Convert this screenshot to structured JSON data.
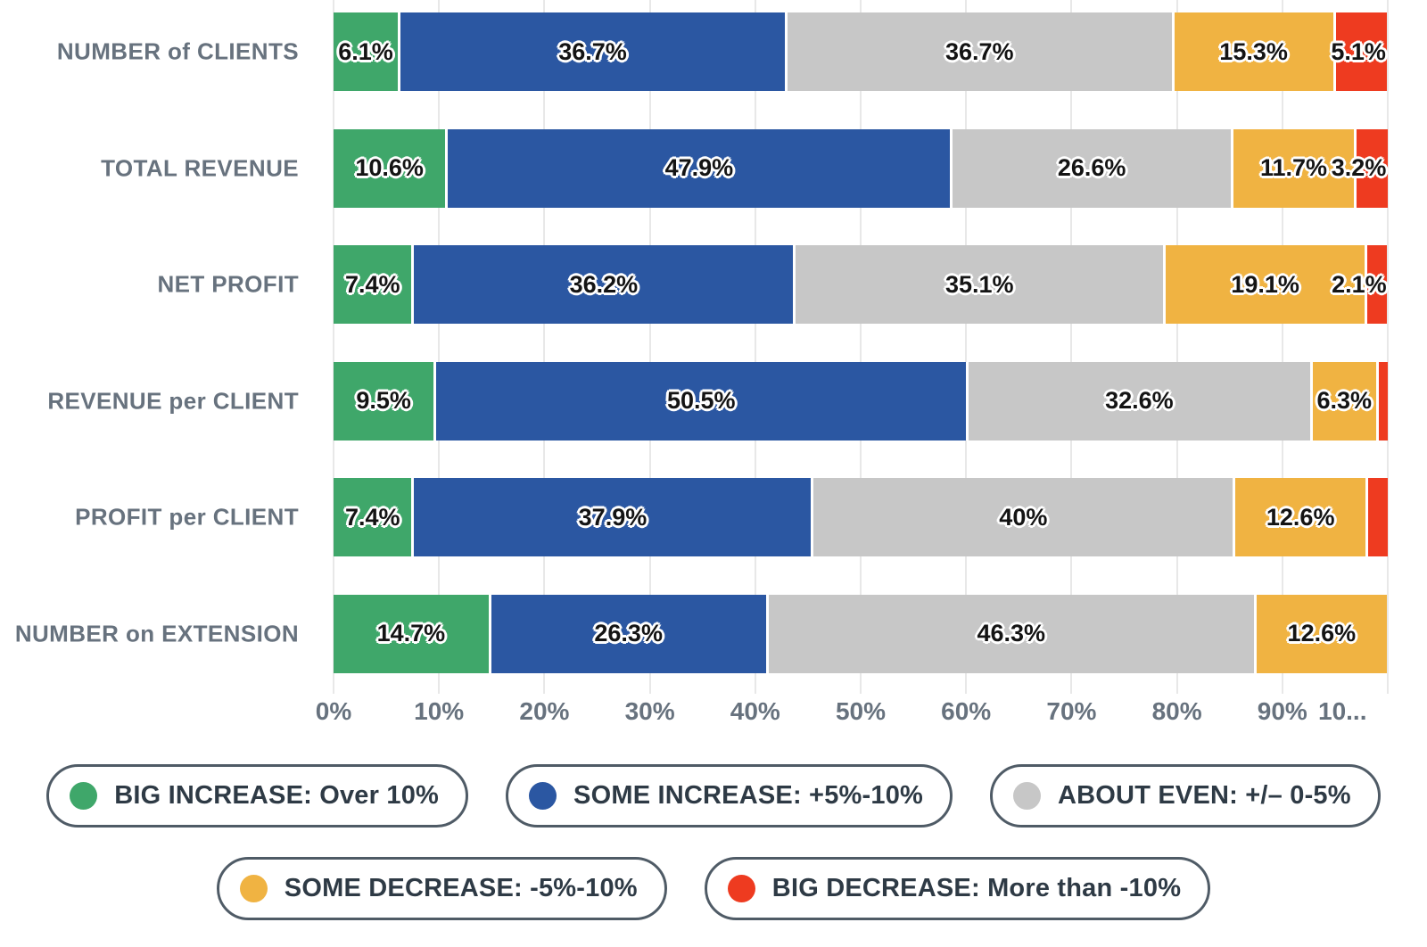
{
  "chart_data": {
    "type": "bar",
    "variant": "horizontal-stacked-percent",
    "categories": [
      "NUMBER of CLIENTS",
      "TOTAL REVENUE",
      "NET PROFIT",
      "REVENUE per CLIENT",
      "PROFIT per CLIENT",
      "NUMBER on EXTENSION"
    ],
    "series": [
      {
        "name": "BIG INCREASE: Over 10%",
        "color": "#3FA76A",
        "values": [
          6.1,
          10.6,
          7.4,
          9.5,
          7.4,
          14.7
        ],
        "labels": [
          "6.1%",
          "10.6%",
          "7.4%",
          "9.5%",
          "7.4%",
          "14.7%"
        ]
      },
      {
        "name": "SOME INCREASE: +5%-10%",
        "color": "#2B57A2",
        "values": [
          36.7,
          47.9,
          36.2,
          50.5,
          37.9,
          26.3
        ],
        "labels": [
          "36.7%",
          "47.9%",
          "36.2%",
          "50.5%",
          "37.9%",
          "26.3%"
        ]
      },
      {
        "name": "ABOUT EVEN: +/– 0-5%",
        "color": "#C7C7C7",
        "values": [
          36.7,
          26.6,
          35.1,
          32.6,
          40,
          46.3
        ],
        "labels": [
          "36.7%",
          "26.6%",
          "35.1%",
          "32.6%",
          "40%",
          "46.3%"
        ]
      },
      {
        "name": "SOME DECREASE: -5%-10%",
        "color": "#F0B342",
        "values": [
          15.3,
          11.7,
          19.1,
          6.3,
          12.6,
          12.6
        ],
        "labels": [
          "15.3%",
          "11.7%",
          "19.1%",
          "6.3%",
          "12.6%",
          "12.6%"
        ]
      },
      {
        "name": "BIG DECREASE: More than -10%",
        "color": "#EE3B20",
        "values": [
          5.1,
          3.2,
          2.1,
          1.1,
          2.1,
          0
        ],
        "labels": [
          "5.1%",
          "3.2%",
          "2.1%",
          "",
          "",
          ""
        ]
      }
    ],
    "x_axis": {
      "range": [
        0,
        100
      ],
      "tick_labels": [
        "0%",
        "10%",
        "20%",
        "30%",
        "40%",
        "50%",
        "60%",
        "70%",
        "80%",
        "90%",
        "10..."
      ],
      "grid": true
    },
    "legend": {
      "position": "bottom",
      "rows": [
        [
          0,
          1,
          2
        ],
        [
          3,
          4
        ]
      ]
    },
    "style_colors": {
      "background": "#FFFFFF",
      "gridline": "#E8E8E8",
      "row_label_text": "#67727E",
      "tick_label_text": "#67727E",
      "data_label_text": "#141414",
      "legend_text": "#2E3A45",
      "legend_border": "#4F5B66"
    }
  }
}
